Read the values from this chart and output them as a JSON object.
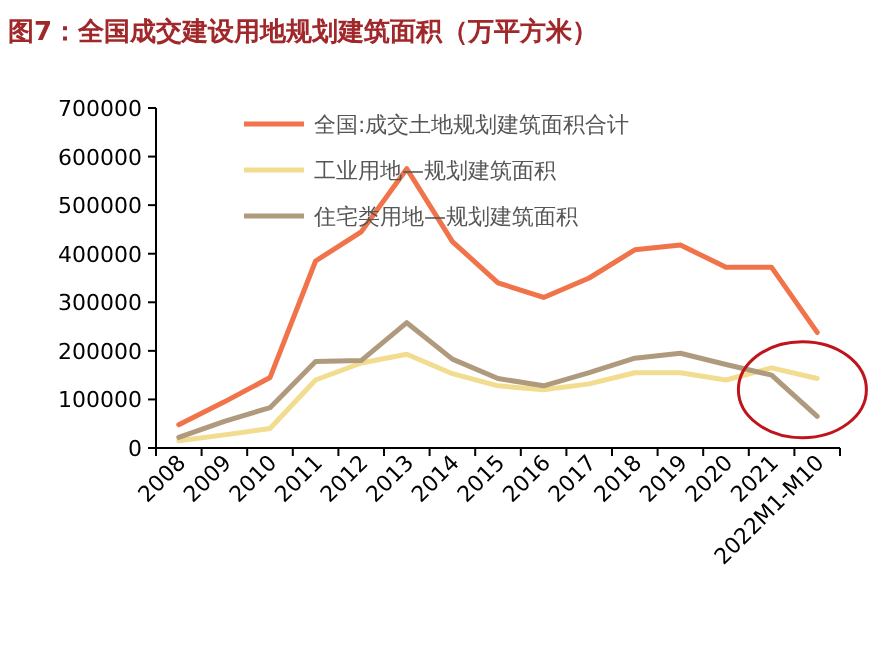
{
  "chart_data": {
    "type": "line",
    "title": "图7：全国成交建设用地规划建筑面积（万平方米）",
    "categories": [
      "2008",
      "2009",
      "2010",
      "2011",
      "2012",
      "2013",
      "2014",
      "2015",
      "2016",
      "2017",
      "2018",
      "2019",
      "2020",
      "2021",
      "2022M1-M10"
    ],
    "series": [
      {
        "name": "全国:成交土地规划建筑面积合计",
        "color": "#f0734a",
        "values": [
          48000,
          95000,
          145000,
          385000,
          445000,
          575000,
          425000,
          340000,
          310000,
          350000,
          408000,
          418000,
          372000,
          372000,
          238000
        ]
      },
      {
        "name": "工业用地—规划建筑面积",
        "color": "#f2dc8f",
        "values": [
          15000,
          27000,
          40000,
          140000,
          175000,
          193000,
          153000,
          128000,
          120000,
          132000,
          155000,
          155000,
          140000,
          165000,
          143000
        ]
      },
      {
        "name": "住宅类用地—规划建筑面积",
        "color": "#b09a7d",
        "values": [
          22000,
          55000,
          83000,
          178000,
          180000,
          258000,
          183000,
          143000,
          128000,
          155000,
          185000,
          195000,
          172000,
          150000,
          65000
        ]
      }
    ],
    "ylim": [
      0,
      700000
    ],
    "yticks": [
      0,
      100000,
      200000,
      300000,
      400000,
      500000,
      600000,
      700000
    ],
    "grid": false,
    "legend": "top",
    "marker": "none",
    "line_style": "solid"
  }
}
